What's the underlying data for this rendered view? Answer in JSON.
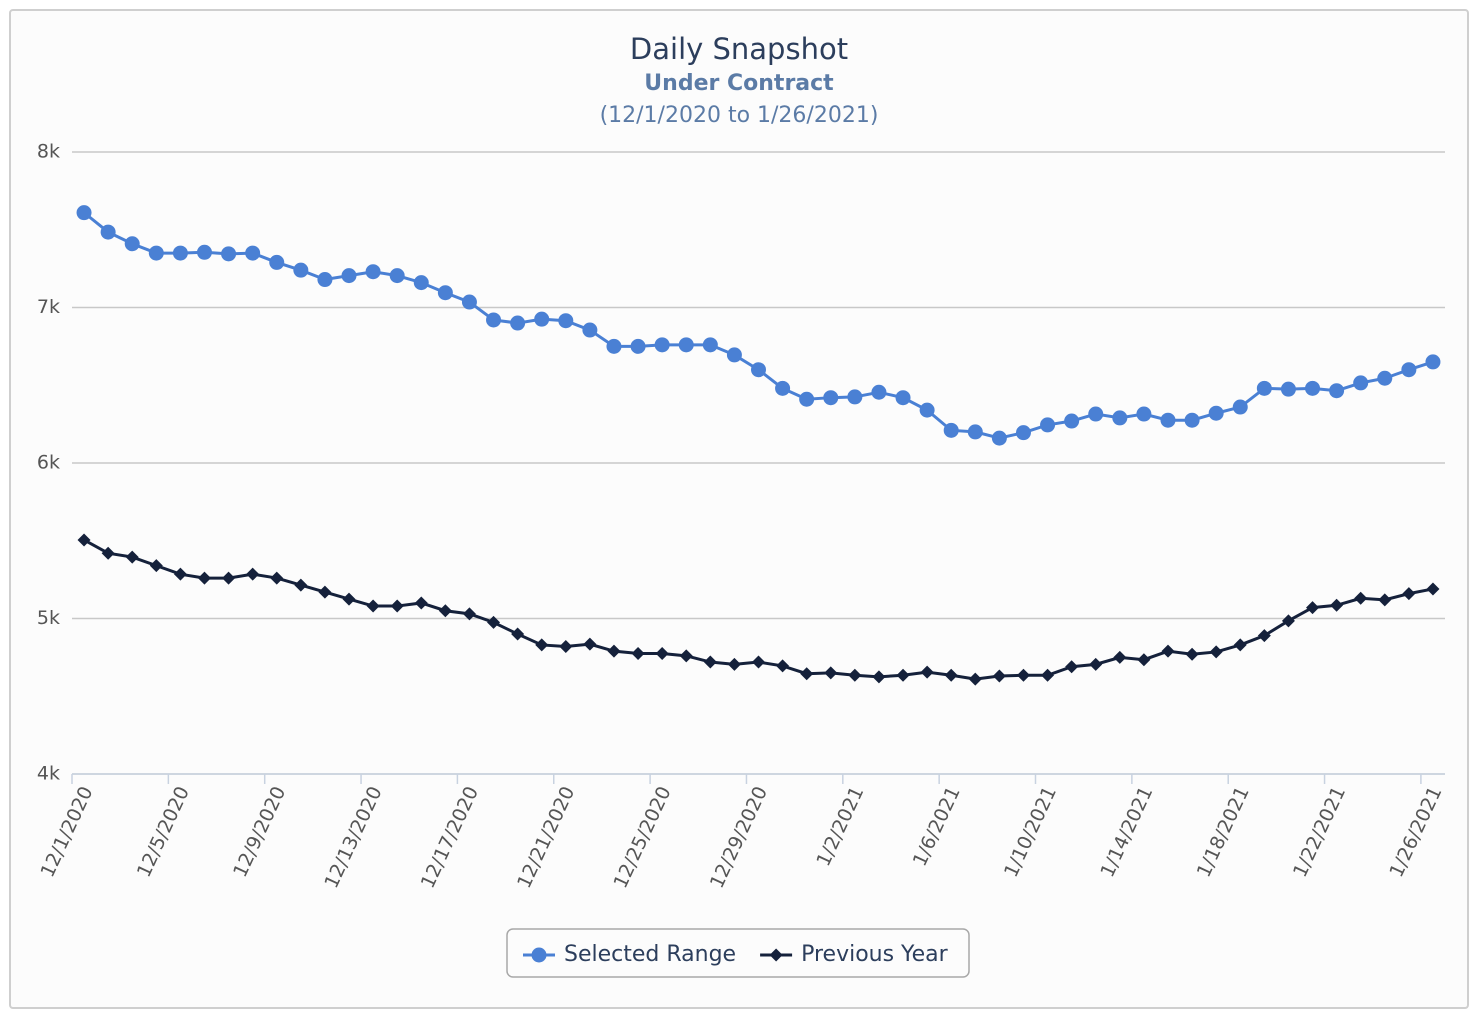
{
  "chart_data": {
    "type": "line",
    "title": "Daily Snapshot",
    "subtitle": "Under Contract",
    "date_range": "(12/1/2020 to 1/26/2021)",
    "categories": [
      "12/1/2020",
      null,
      null,
      null,
      "12/5/2020",
      null,
      null,
      null,
      "12/9/2020",
      null,
      null,
      null,
      "12/13/2020",
      null,
      null,
      null,
      "12/17/2020",
      null,
      null,
      null,
      "12/21/2020",
      null,
      null,
      null,
      "12/25/2020",
      null,
      null,
      null,
      "12/29/2020",
      null,
      null,
      null,
      "1/2/2021",
      null,
      null,
      null,
      "1/6/2021",
      null,
      null,
      null,
      "1/10/2021",
      null,
      null,
      null,
      "1/14/2021",
      null,
      null,
      null,
      "1/18/2021",
      null,
      null,
      null,
      "1/22/2021",
      null,
      null,
      null,
      "1/26/2021"
    ],
    "series": [
      {
        "name": "Selected Range",
        "color": "#4a80d4",
        "marker": "circle",
        "values": [
          7610,
          7485,
          7410,
          7350,
          7350,
          7355,
          7345,
          7350,
          7290,
          7240,
          7180,
          7205,
          7230,
          7205,
          7160,
          7095,
          7035,
          6920,
          6900,
          6925,
          6915,
          6855,
          6750,
          6750,
          6760,
          6760,
          6760,
          6695,
          6600,
          6480,
          6410,
          6420,
          6425,
          6455,
          6420,
          6340,
          6210,
          6200,
          6160,
          6195,
          6245,
          6270,
          6315,
          6290,
          6315,
          6275,
          6275,
          6320,
          6360,
          6480,
          6475,
          6480,
          6465,
          6515,
          6545,
          6600,
          6650
        ]
      },
      {
        "name": "Previous Year",
        "color": "#15213b",
        "marker": "diamond",
        "values": [
          5505,
          5420,
          5395,
          5340,
          5285,
          5260,
          5260,
          5285,
          5260,
          5215,
          5170,
          5125,
          5080,
          5080,
          5100,
          5050,
          5030,
          4975,
          4900,
          4830,
          4820,
          4835,
          4790,
          4775,
          4775,
          4760,
          4720,
          4705,
          4720,
          4695,
          4645,
          4650,
          4635,
          4625,
          4635,
          4655,
          4635,
          4610,
          4630,
          4635,
          4635,
          4690,
          4705,
          4750,
          4735,
          4790,
          4770,
          4785,
          4830,
          4890,
          4985,
          5070,
          5085,
          5130,
          5120,
          5160,
          5190
        ]
      }
    ],
    "ylim": [
      4000,
      8000
    ],
    "yticks": [
      {
        "value": 4000,
        "label": "4k"
      },
      {
        "value": 5000,
        "label": "5k"
      },
      {
        "value": 6000,
        "label": "6k"
      },
      {
        "value": 7000,
        "label": "7k"
      },
      {
        "value": 8000,
        "label": "8k"
      }
    ],
    "grid": true,
    "legend": "bottom"
  }
}
